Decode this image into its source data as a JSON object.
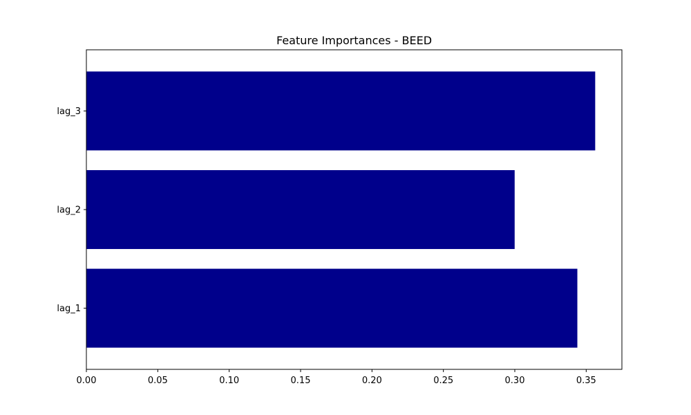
{
  "chart_data": {
    "type": "bar",
    "orientation": "horizontal",
    "title": "Feature Importances - BEED",
    "xlabel": "",
    "ylabel": "",
    "categories": [
      "lag_1",
      "lag_2",
      "lag_3"
    ],
    "values": [
      0.3438,
      0.2999,
      0.3563
    ],
    "xlim": [
      0,
      0.375
    ],
    "xticks": [
      0.0,
      0.05,
      0.1,
      0.15,
      0.2,
      0.25,
      0.3,
      0.35
    ],
    "xtick_labels": [
      "0.00",
      "0.05",
      "0.10",
      "0.15",
      "0.20",
      "0.25",
      "0.30",
      "0.35"
    ],
    "bar_color": "#00008b",
    "grid": false,
    "legend": "none"
  }
}
